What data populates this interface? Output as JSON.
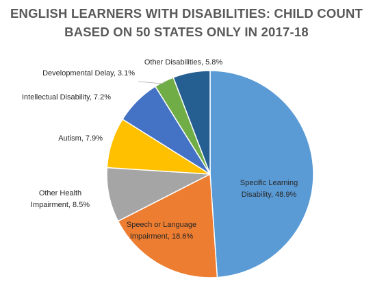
{
  "title_lines": [
    "ENGLISH LEARNERS WITH DISABILITIES: CHILD COUNT",
    "BASED ON 50 STATES ONLY IN 2017-18"
  ],
  "chart_data": {
    "type": "pie",
    "title": "ENGLISH LEARNERS WITH DISABILITIES: CHILD COUNT BASED ON 50 STATES ONLY IN 2017-18",
    "start_angle": "12 o'clock",
    "direction": "clockwise",
    "slices": [
      {
        "label": "Specific Learning Disability",
        "value": 48.9,
        "label_lines": [
          "Specific Learning",
          "Disability, 48.9%"
        ],
        "color": "#5B9BD5",
        "label_position": "inside"
      },
      {
        "label": "Speech or Language Impairment",
        "value": 18.6,
        "label_lines": [
          "Speech or Language",
          "Impairment, 18.6%"
        ],
        "color": "#ED7D31",
        "label_position": "inside"
      },
      {
        "label": "Other Health Impairment",
        "value": 8.5,
        "label_lines": [
          "Other Health",
          "Impairment, 8.5%"
        ],
        "color": "#A5A5A5",
        "label_position": "outside"
      },
      {
        "label": "Autism",
        "value": 7.9,
        "label_lines": [
          "Autism, 7.9%"
        ],
        "color": "#FFC000",
        "label_position": "outside"
      },
      {
        "label": "Intellectual Disability",
        "value": 7.2,
        "label_lines": [
          "Intellectual Disability, 7.2%"
        ],
        "color": "#4472C4",
        "label_position": "outside"
      },
      {
        "label": "Developmental Delay",
        "value": 3.1,
        "label_lines": [
          "Developmental Delay, 3.1%"
        ],
        "color": "#70AD47",
        "label_position": "outside-with-leader"
      },
      {
        "label": "Other Disabilities",
        "value": 5.8,
        "label_lines": [
          "Other Disabilities, 5.8%"
        ],
        "color": "#255E91",
        "label_position": "outside"
      }
    ]
  }
}
